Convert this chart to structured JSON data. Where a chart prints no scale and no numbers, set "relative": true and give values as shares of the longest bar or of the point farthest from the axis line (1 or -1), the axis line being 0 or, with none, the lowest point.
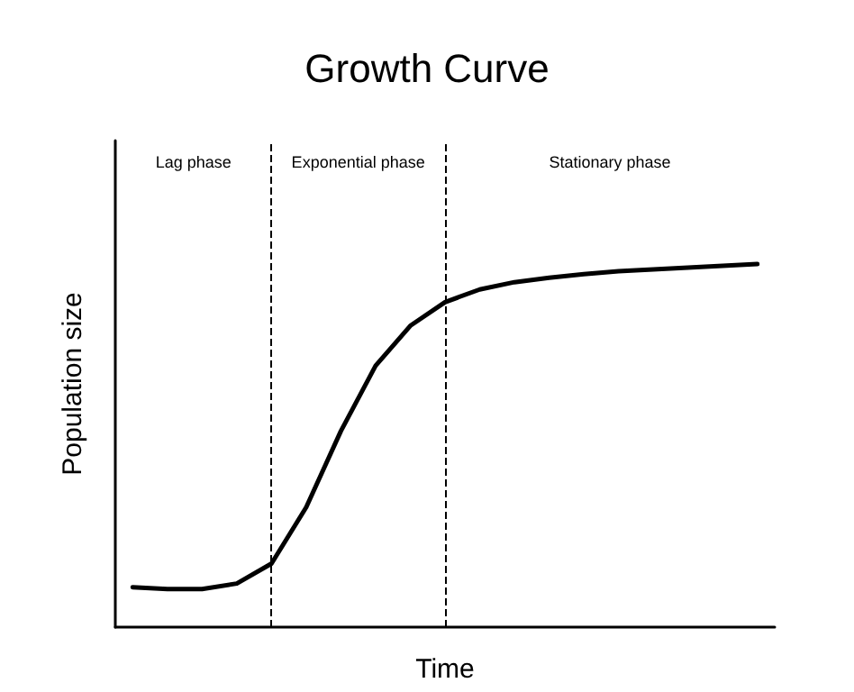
{
  "chart_data": {
    "type": "line",
    "title": "Growth Curve",
    "xlabel": "Time",
    "ylabel": "Population size",
    "relative": true,
    "categories": [
      null,
      null,
      null,
      null,
      null,
      null,
      null,
      null,
      null,
      null,
      null,
      null,
      null,
      null,
      null,
      null,
      null,
      null,
      null
    ],
    "series": [
      {
        "color": "#000000",
        "values": [
          0.11,
          0.105,
          0.105,
          0.12,
          0.175,
          0.33,
          0.54,
          0.72,
          0.83,
          0.895,
          0.93,
          0.95,
          0.962,
          0.972,
          0.98,
          0.985,
          0.99,
          0.995,
          1
        ]
      }
    ],
    "annotations": [
      "Lag phase",
      "Exponential phase",
      "Stationary phase"
    ],
    "marker": "none",
    "line_style": "solid",
    "grid": false
  }
}
